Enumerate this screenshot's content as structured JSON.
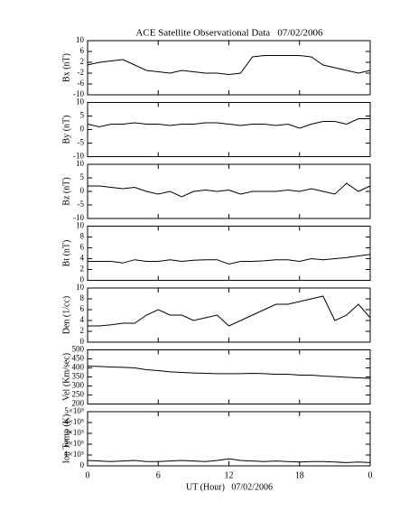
{
  "chart_data": {
    "type": "line",
    "title": "ACE Satellite Observational Data   07/02/2006",
    "xlabel": "UT (Hour)   07/02/2006",
    "xlim": [
      0,
      24
    ],
    "xticks": [
      0,
      6,
      12,
      18,
      {
        "value": 24,
        "label": "0"
      }
    ],
    "x": [
      0,
      1,
      2,
      3,
      4,
      5,
      6,
      7,
      8,
      9,
      10,
      11,
      12,
      13,
      14,
      15,
      16,
      17,
      18,
      19,
      20,
      21,
      22,
      23,
      24
    ],
    "panels": [
      {
        "ylabel": "Bx (nT)",
        "ylim": [
          -10,
          10
        ],
        "yticks": [
          -10,
          -6,
          -2,
          2,
          6,
          10
        ],
        "values": [
          1,
          2,
          2.5,
          3,
          1,
          -1,
          -1.5,
          -2,
          -1,
          -1.5,
          -2,
          -2,
          -2.5,
          -2,
          4,
          4.5,
          4.5,
          4.5,
          4.5,
          4,
          1,
          0,
          -1,
          -2,
          -1
        ]
      },
      {
        "ylabel": "By (nT)",
        "ylim": [
          -10,
          10
        ],
        "yticks": [
          -10,
          -5,
          0,
          5,
          10
        ],
        "values": [
          2,
          1,
          2,
          2,
          2.5,
          2,
          2,
          1.5,
          2,
          2,
          2.5,
          2.5,
          2,
          1.5,
          2,
          2,
          1.5,
          2,
          0.5,
          2,
          3,
          3,
          2,
          4,
          4
        ]
      },
      {
        "ylabel": "Bz (nT)",
        "ylim": [
          -10,
          10
        ],
        "yticks": [
          -10,
          -5,
          0,
          5,
          10
        ],
        "values": [
          2,
          2,
          1.5,
          1,
          1.5,
          0,
          -1,
          0,
          -2,
          0,
          0.5,
          0,
          0.5,
          -1,
          0,
          0,
          0,
          0.5,
          0,
          1,
          0,
          -1,
          3,
          0,
          2
        ]
      },
      {
        "ylabel": "Bt (nT)",
        "ylim": [
          0,
          10
        ],
        "yticks": [
          0,
          2,
          4,
          6,
          8,
          10
        ],
        "values": [
          3.5,
          3.5,
          3.5,
          3.2,
          3.8,
          3.5,
          3.5,
          3.8,
          3.5,
          3.7,
          3.8,
          3.8,
          3,
          3.5,
          3.5,
          3.6,
          3.8,
          3.8,
          3.5,
          4,
          3.8,
          4,
          4.2,
          4.5,
          4.8
        ]
      },
      {
        "ylabel": "Den (1/cc)",
        "ylim": [
          0,
          10
        ],
        "yticks": [
          0,
          2,
          4,
          6,
          8,
          10
        ],
        "values": [
          3,
          3,
          3.2,
          3.5,
          3.5,
          5,
          6,
          5,
          5,
          4,
          4.5,
          5,
          3,
          4,
          5,
          6,
          7,
          7,
          7.5,
          8,
          8.5,
          4,
          5,
          7,
          4.5
        ]
      },
      {
        "ylabel": "Vel (Km/sec)",
        "ylim": [
          200,
          500
        ],
        "yticks": [
          200,
          250,
          300,
          350,
          400,
          450,
          500
        ],
        "values": [
          410,
          408,
          405,
          403,
          400,
          390,
          385,
          378,
          375,
          372,
          370,
          368,
          368,
          368,
          370,
          368,
          365,
          365,
          360,
          360,
          355,
          352,
          348,
          345,
          342
        ]
      },
      {
        "ylabel": "Ion Temp (K)",
        "ylim": [
          0,
          500000
        ],
        "yticks": [
          0,
          {
            "value": 100000,
            "label": "1×10⁵"
          },
          {
            "value": 200000,
            "label": "2×10⁵"
          },
          {
            "value": 300000,
            "label": "3×10⁵"
          },
          {
            "value": 400000,
            "label": "4×10⁵"
          },
          {
            "value": 500000,
            "label": "5×10⁵"
          }
        ],
        "values": [
          50000,
          45000,
          40000,
          45000,
          50000,
          40000,
          40000,
          45000,
          50000,
          45000,
          40000,
          50000,
          65000,
          50000,
          45000,
          40000,
          45000,
          40000,
          35000,
          40000,
          40000,
          35000,
          30000,
          35000,
          30000
        ]
      }
    ]
  }
}
